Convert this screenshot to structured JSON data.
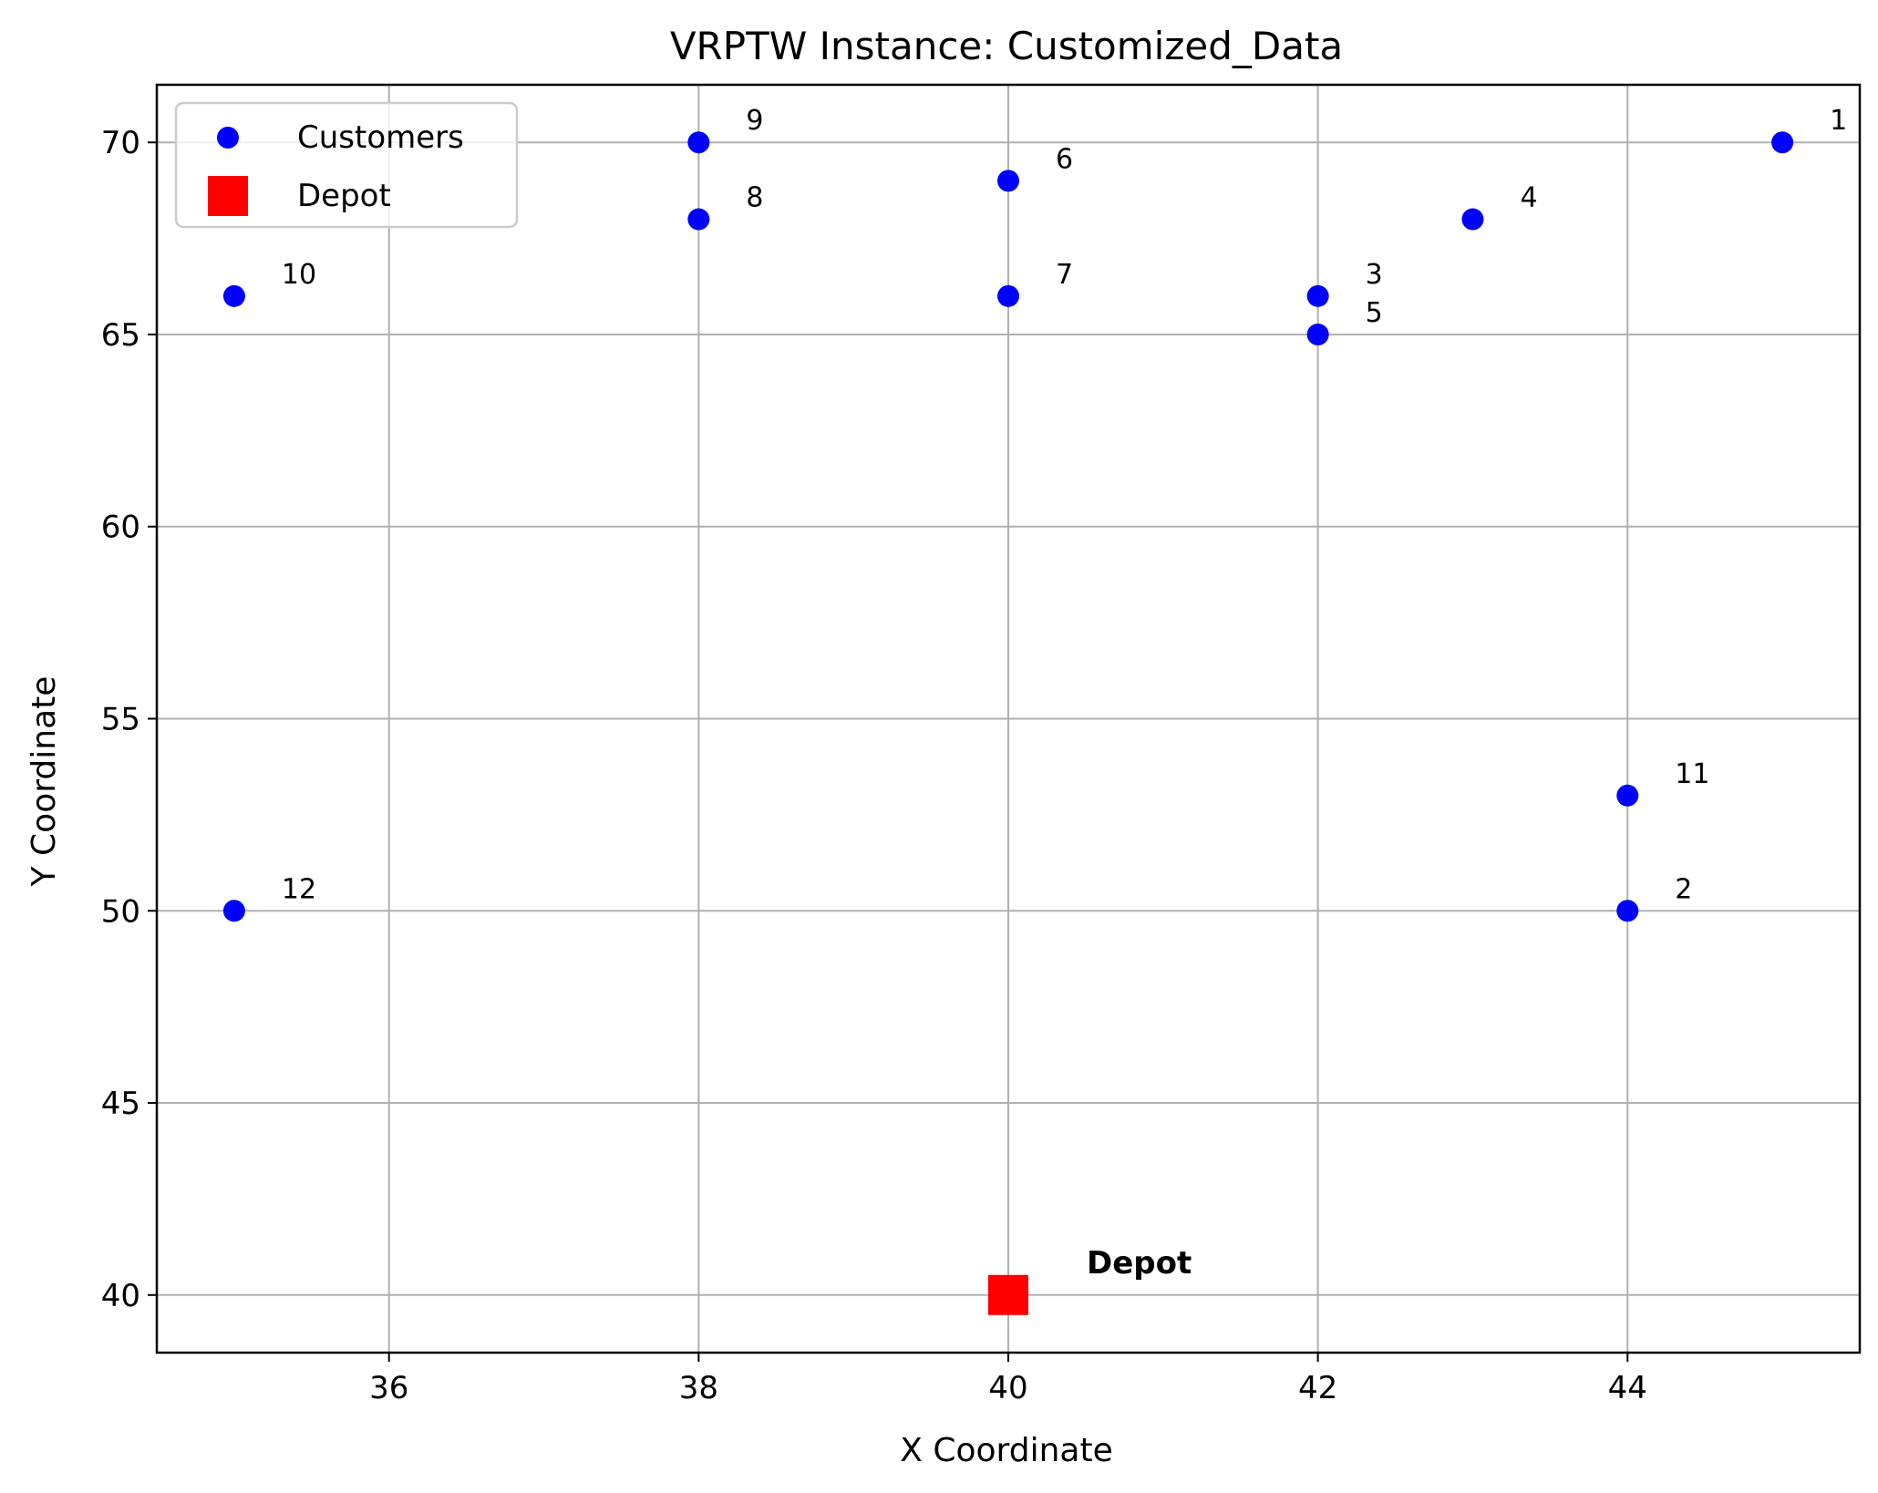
{
  "chart_data": {
    "type": "scatter",
    "title": "VRPTW Instance: Customized_Data",
    "xlabel": "X Coordinate",
    "ylabel": "Y Coordinate",
    "xlim": [
      34.5,
      45.5
    ],
    "ylim": [
      38.5,
      71.5
    ],
    "x_ticks": [
      36,
      38,
      40,
      42,
      44
    ],
    "y_ticks": [
      40,
      45,
      50,
      55,
      60,
      65,
      70
    ],
    "grid": true,
    "legend_position": "top-left",
    "series": [
      {
        "name": "Customers",
        "marker": "circle",
        "color": "#0000ff",
        "points": [
          {
            "id": "1",
            "x": 45,
            "y": 70
          },
          {
            "id": "2",
            "x": 44,
            "y": 50
          },
          {
            "id": "3",
            "x": 42,
            "y": 66
          },
          {
            "id": "4",
            "x": 43,
            "y": 68
          },
          {
            "id": "5",
            "x": 42,
            "y": 65
          },
          {
            "id": "6",
            "x": 40,
            "y": 69
          },
          {
            "id": "7",
            "x": 40,
            "y": 66
          },
          {
            "id": "8",
            "x": 38,
            "y": 68
          },
          {
            "id": "9",
            "x": 38,
            "y": 70
          },
          {
            "id": "10",
            "x": 35,
            "y": 66
          },
          {
            "id": "11",
            "x": 44,
            "y": 53
          },
          {
            "id": "12",
            "x": 35,
            "y": 50
          }
        ]
      },
      {
        "name": "Depot",
        "marker": "square",
        "color": "#ff0000",
        "points": [
          {
            "id": "Depot",
            "x": 40,
            "y": 40
          }
        ]
      }
    ]
  }
}
